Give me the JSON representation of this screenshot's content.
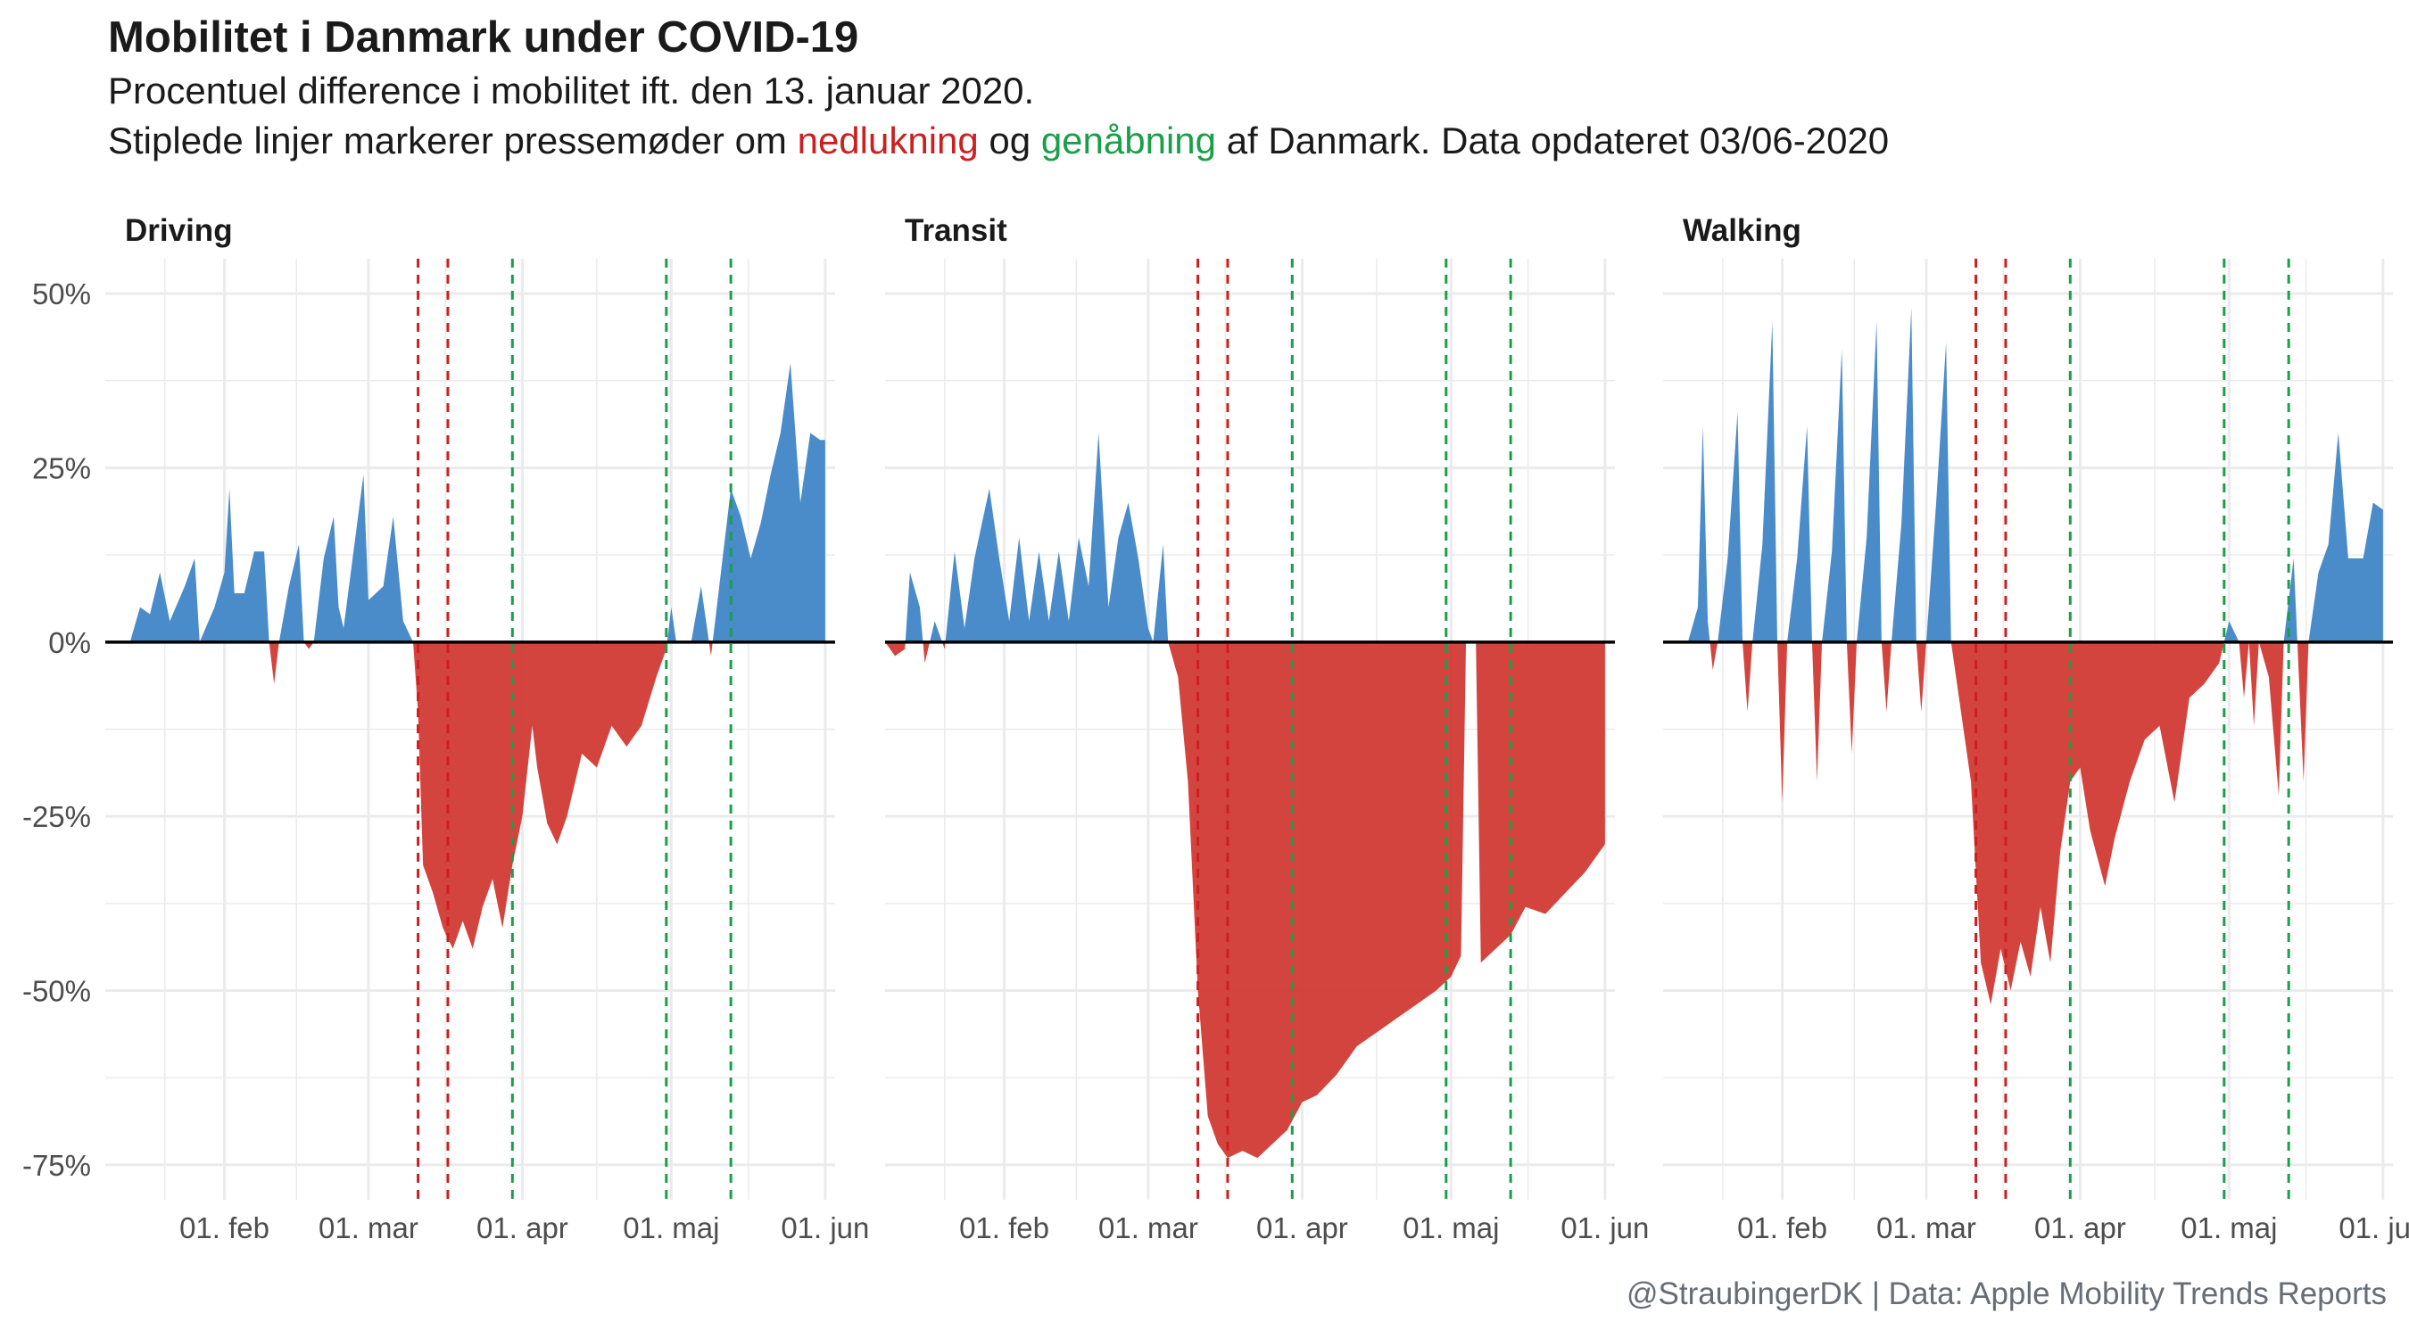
{
  "header": {
    "title": "Mobilitet i Danmark under COVID-19",
    "subtitle_line1": "Procentuel difference i mobilitet ift. den 13. januar 2020.",
    "subtitle_line2_pre": "Stiplede linjer markerer pressemøder om ",
    "subtitle_line2_red": "nedlukning",
    "subtitle_line2_mid": " og ",
    "subtitle_line2_green": "genåbning",
    "subtitle_line2_post": " af Danmark. Data opdateret 03/06-2020"
  },
  "caption": "@StraubingerDK | Data: Apple Mobility Trends Reports",
  "colors": {
    "positive_fill": "#4a8bc9",
    "negative_fill": "#d23a34",
    "lockdown_line": "#cc2020",
    "reopening_line": "#1a9f49",
    "grid": "#ebebeb",
    "zero_line": "#000000"
  },
  "chart_data": {
    "type": "area",
    "x_unit": "date (2020)",
    "y_unit": "percent",
    "ylim": [
      -80,
      55
    ],
    "xlim": [
      "2020-01-08",
      "2020-06-03"
    ],
    "y_ticks": [
      50,
      25,
      0,
      -25,
      -50,
      -75
    ],
    "y_tick_labels": [
      "50%",
      "25%",
      "0%",
      "-25%",
      "-50%",
      "-75%"
    ],
    "x_ticks": [
      "2020-02-01",
      "2020-03-01",
      "2020-04-01",
      "2020-05-01",
      "2020-06-01"
    ],
    "x_tick_labels": [
      "01. feb",
      "01. mar",
      "01. apr",
      "01. maj",
      "01. jun"
    ],
    "grid": true,
    "vlines": {
      "lockdown": [
        "2020-03-11",
        "2020-03-17"
      ],
      "reopening": [
        "2020-03-30",
        "2020-04-30",
        "2020-05-13"
      ]
    },
    "panels": [
      {
        "name": "Driving",
        "points": [
          [
            "2020-01-13",
            0
          ],
          [
            "2020-01-15",
            5
          ],
          [
            "2020-01-17",
            4
          ],
          [
            "2020-01-19",
            10
          ],
          [
            "2020-01-21",
            3
          ],
          [
            "2020-01-24",
            8
          ],
          [
            "2020-01-26",
            12
          ],
          [
            "2020-01-27",
            0
          ],
          [
            "2020-01-30",
            5
          ],
          [
            "2020-02-01",
            10
          ],
          [
            "2020-02-02",
            22
          ],
          [
            "2020-02-03",
            7
          ],
          [
            "2020-02-05",
            7
          ],
          [
            "2020-02-07",
            13
          ],
          [
            "2020-02-09",
            13
          ],
          [
            "2020-02-10",
            0
          ],
          [
            "2020-02-11",
            -6
          ],
          [
            "2020-02-12",
            0
          ],
          [
            "2020-02-14",
            8
          ],
          [
            "2020-02-16",
            14
          ],
          [
            "2020-02-17",
            0
          ],
          [
            "2020-02-18",
            -1
          ],
          [
            "2020-02-19",
            0
          ],
          [
            "2020-02-21",
            12
          ],
          [
            "2020-02-23",
            18
          ],
          [
            "2020-02-24",
            5
          ],
          [
            "2020-02-25",
            2
          ],
          [
            "2020-02-27",
            13
          ],
          [
            "2020-02-29",
            24
          ],
          [
            "2020-03-01",
            6
          ],
          [
            "2020-03-04",
            8
          ],
          [
            "2020-03-06",
            18
          ],
          [
            "2020-03-08",
            3
          ],
          [
            "2020-03-10",
            0
          ],
          [
            "2020-03-11",
            -10
          ],
          [
            "2020-03-12",
            -32
          ],
          [
            "2020-03-14",
            -36
          ],
          [
            "2020-03-16",
            -41
          ],
          [
            "2020-03-18",
            -44
          ],
          [
            "2020-03-20",
            -40
          ],
          [
            "2020-03-22",
            -44
          ],
          [
            "2020-03-24",
            -38
          ],
          [
            "2020-03-26",
            -34
          ],
          [
            "2020-03-28",
            -41
          ],
          [
            "2020-03-30",
            -32
          ],
          [
            "2020-04-01",
            -25
          ],
          [
            "2020-04-03",
            -12
          ],
          [
            "2020-04-04",
            -18
          ],
          [
            "2020-04-06",
            -26
          ],
          [
            "2020-04-08",
            -29
          ],
          [
            "2020-04-10",
            -25
          ],
          [
            "2020-04-13",
            -16
          ],
          [
            "2020-04-16",
            -18
          ],
          [
            "2020-04-19",
            -12
          ],
          [
            "2020-04-22",
            -15
          ],
          [
            "2020-04-25",
            -12
          ],
          [
            "2020-04-28",
            -5
          ],
          [
            "2020-04-30",
            -1
          ],
          [
            "2020-05-01",
            5
          ],
          [
            "2020-05-02",
            0
          ],
          [
            "2020-05-05",
            0
          ],
          [
            "2020-05-07",
            8
          ],
          [
            "2020-05-09",
            -2
          ],
          [
            "2020-05-11",
            10
          ],
          [
            "2020-05-13",
            22
          ],
          [
            "2020-05-15",
            18
          ],
          [
            "2020-05-17",
            12
          ],
          [
            "2020-05-19",
            17
          ],
          [
            "2020-05-21",
            24
          ],
          [
            "2020-05-23",
            30
          ],
          [
            "2020-05-25",
            40
          ],
          [
            "2020-05-27",
            20
          ],
          [
            "2020-05-29",
            30
          ],
          [
            "2020-05-31",
            29
          ],
          [
            "2020-06-01",
            29
          ]
        ]
      },
      {
        "name": "Transit",
        "points": [
          [
            "2020-01-08",
            0
          ],
          [
            "2020-01-10",
            -2
          ],
          [
            "2020-01-12",
            -1
          ],
          [
            "2020-01-13",
            10
          ],
          [
            "2020-01-15",
            5
          ],
          [
            "2020-01-16",
            -3
          ],
          [
            "2020-01-18",
            3
          ],
          [
            "2020-01-20",
            -1
          ],
          [
            "2020-01-22",
            13
          ],
          [
            "2020-01-24",
            2
          ],
          [
            "2020-01-26",
            12
          ],
          [
            "2020-01-29",
            22
          ],
          [
            "2020-01-31",
            12
          ],
          [
            "2020-02-02",
            3
          ],
          [
            "2020-02-04",
            15
          ],
          [
            "2020-02-06",
            3
          ],
          [
            "2020-02-08",
            13
          ],
          [
            "2020-02-10",
            3
          ],
          [
            "2020-02-12",
            13
          ],
          [
            "2020-02-14",
            3
          ],
          [
            "2020-02-16",
            15
          ],
          [
            "2020-02-18",
            8
          ],
          [
            "2020-02-20",
            30
          ],
          [
            "2020-02-22",
            5
          ],
          [
            "2020-02-24",
            15
          ],
          [
            "2020-02-26",
            20
          ],
          [
            "2020-02-28",
            12
          ],
          [
            "2020-03-01",
            2
          ],
          [
            "2020-03-02",
            0
          ],
          [
            "2020-03-04",
            14
          ],
          [
            "2020-03-05",
            0
          ],
          [
            "2020-03-07",
            -5
          ],
          [
            "2020-03-09",
            -20
          ],
          [
            "2020-03-11",
            -50
          ],
          [
            "2020-03-13",
            -68
          ],
          [
            "2020-03-15",
            -72
          ],
          [
            "2020-03-17",
            -74
          ],
          [
            "2020-03-20",
            -73
          ],
          [
            "2020-03-23",
            -74
          ],
          [
            "2020-03-26",
            -72
          ],
          [
            "2020-03-29",
            -70
          ],
          [
            "2020-04-01",
            -66
          ],
          [
            "2020-04-04",
            -65
          ],
          [
            "2020-04-08",
            -62
          ],
          [
            "2020-04-12",
            -58
          ],
          [
            "2020-04-16",
            -56
          ],
          [
            "2020-04-20",
            -54
          ],
          [
            "2020-04-24",
            -52
          ],
          [
            "2020-04-28",
            -50
          ],
          [
            "2020-05-01",
            -48
          ],
          [
            "2020-05-03",
            -45
          ],
          [
            "2020-05-04",
            0
          ],
          [
            "2020-05-06",
            0
          ],
          [
            "2020-05-07",
            -46
          ],
          [
            "2020-05-10",
            -44
          ],
          [
            "2020-05-13",
            -42
          ],
          [
            "2020-05-16",
            -38
          ],
          [
            "2020-05-20",
            -39
          ],
          [
            "2020-05-24",
            -36
          ],
          [
            "2020-05-28",
            -33
          ],
          [
            "2020-06-01",
            -29
          ]
        ]
      },
      {
        "name": "Walking",
        "points": [
          [
            "2020-01-13",
            0
          ],
          [
            "2020-01-15",
            5
          ],
          [
            "2020-01-16",
            31
          ],
          [
            "2020-01-17",
            3
          ],
          [
            "2020-01-18",
            -4
          ],
          [
            "2020-01-19",
            0
          ],
          [
            "2020-01-21",
            12
          ],
          [
            "2020-01-23",
            33
          ],
          [
            "2020-01-24",
            0
          ],
          [
            "2020-01-25",
            -10
          ],
          [
            "2020-01-26",
            0
          ],
          [
            "2020-01-28",
            14
          ],
          [
            "2020-01-30",
            46
          ],
          [
            "2020-01-31",
            0
          ],
          [
            "2020-02-01",
            -23
          ],
          [
            "2020-02-02",
            0
          ],
          [
            "2020-02-04",
            12
          ],
          [
            "2020-02-06",
            31
          ],
          [
            "2020-02-07",
            0
          ],
          [
            "2020-02-08",
            -20
          ],
          [
            "2020-02-09",
            0
          ],
          [
            "2020-02-11",
            13
          ],
          [
            "2020-02-13",
            42
          ],
          [
            "2020-02-14",
            0
          ],
          [
            "2020-02-15",
            -16
          ],
          [
            "2020-02-16",
            0
          ],
          [
            "2020-02-18",
            15
          ],
          [
            "2020-02-20",
            46
          ],
          [
            "2020-02-21",
            0
          ],
          [
            "2020-02-22",
            -10
          ],
          [
            "2020-02-23",
            0
          ],
          [
            "2020-02-25",
            17
          ],
          [
            "2020-02-27",
            48
          ],
          [
            "2020-02-28",
            0
          ],
          [
            "2020-02-29",
            -10
          ],
          [
            "2020-03-01",
            0
          ],
          [
            "2020-03-03",
            20
          ],
          [
            "2020-03-05",
            43
          ],
          [
            "2020-03-06",
            0
          ],
          [
            "2020-03-08",
            -10
          ],
          [
            "2020-03-10",
            -20
          ],
          [
            "2020-03-12",
            -46
          ],
          [
            "2020-03-14",
            -52
          ],
          [
            "2020-03-16",
            -44
          ],
          [
            "2020-03-18",
            -50
          ],
          [
            "2020-03-20",
            -43
          ],
          [
            "2020-03-22",
            -48
          ],
          [
            "2020-03-24",
            -38
          ],
          [
            "2020-03-26",
            -46
          ],
          [
            "2020-03-28",
            -30
          ],
          [
            "2020-03-30",
            -20
          ],
          [
            "2020-04-01",
            -18
          ],
          [
            "2020-04-03",
            -27
          ],
          [
            "2020-04-06",
            -35
          ],
          [
            "2020-04-08",
            -28
          ],
          [
            "2020-04-11",
            -20
          ],
          [
            "2020-04-14",
            -14
          ],
          [
            "2020-04-17",
            -12
          ],
          [
            "2020-04-20",
            -23
          ],
          [
            "2020-04-23",
            -8
          ],
          [
            "2020-04-26",
            -6
          ],
          [
            "2020-04-29",
            -3
          ],
          [
            "2020-05-01",
            3
          ],
          [
            "2020-05-03",
            0
          ],
          [
            "2020-05-04",
            -8
          ],
          [
            "2020-05-05",
            0
          ],
          [
            "2020-05-06",
            -12
          ],
          [
            "2020-05-07",
            0
          ],
          [
            "2020-05-09",
            -5
          ],
          [
            "2020-05-11",
            -22
          ],
          [
            "2020-05-12",
            0
          ],
          [
            "2020-05-14",
            12
          ],
          [
            "2020-05-16",
            -20
          ],
          [
            "2020-05-17",
            0
          ],
          [
            "2020-05-19",
            10
          ],
          [
            "2020-05-21",
            14
          ],
          [
            "2020-05-23",
            30
          ],
          [
            "2020-05-25",
            12
          ],
          [
            "2020-05-28",
            12
          ],
          [
            "2020-05-30",
            20
          ],
          [
            "2020-06-01",
            19
          ]
        ]
      }
    ]
  }
}
